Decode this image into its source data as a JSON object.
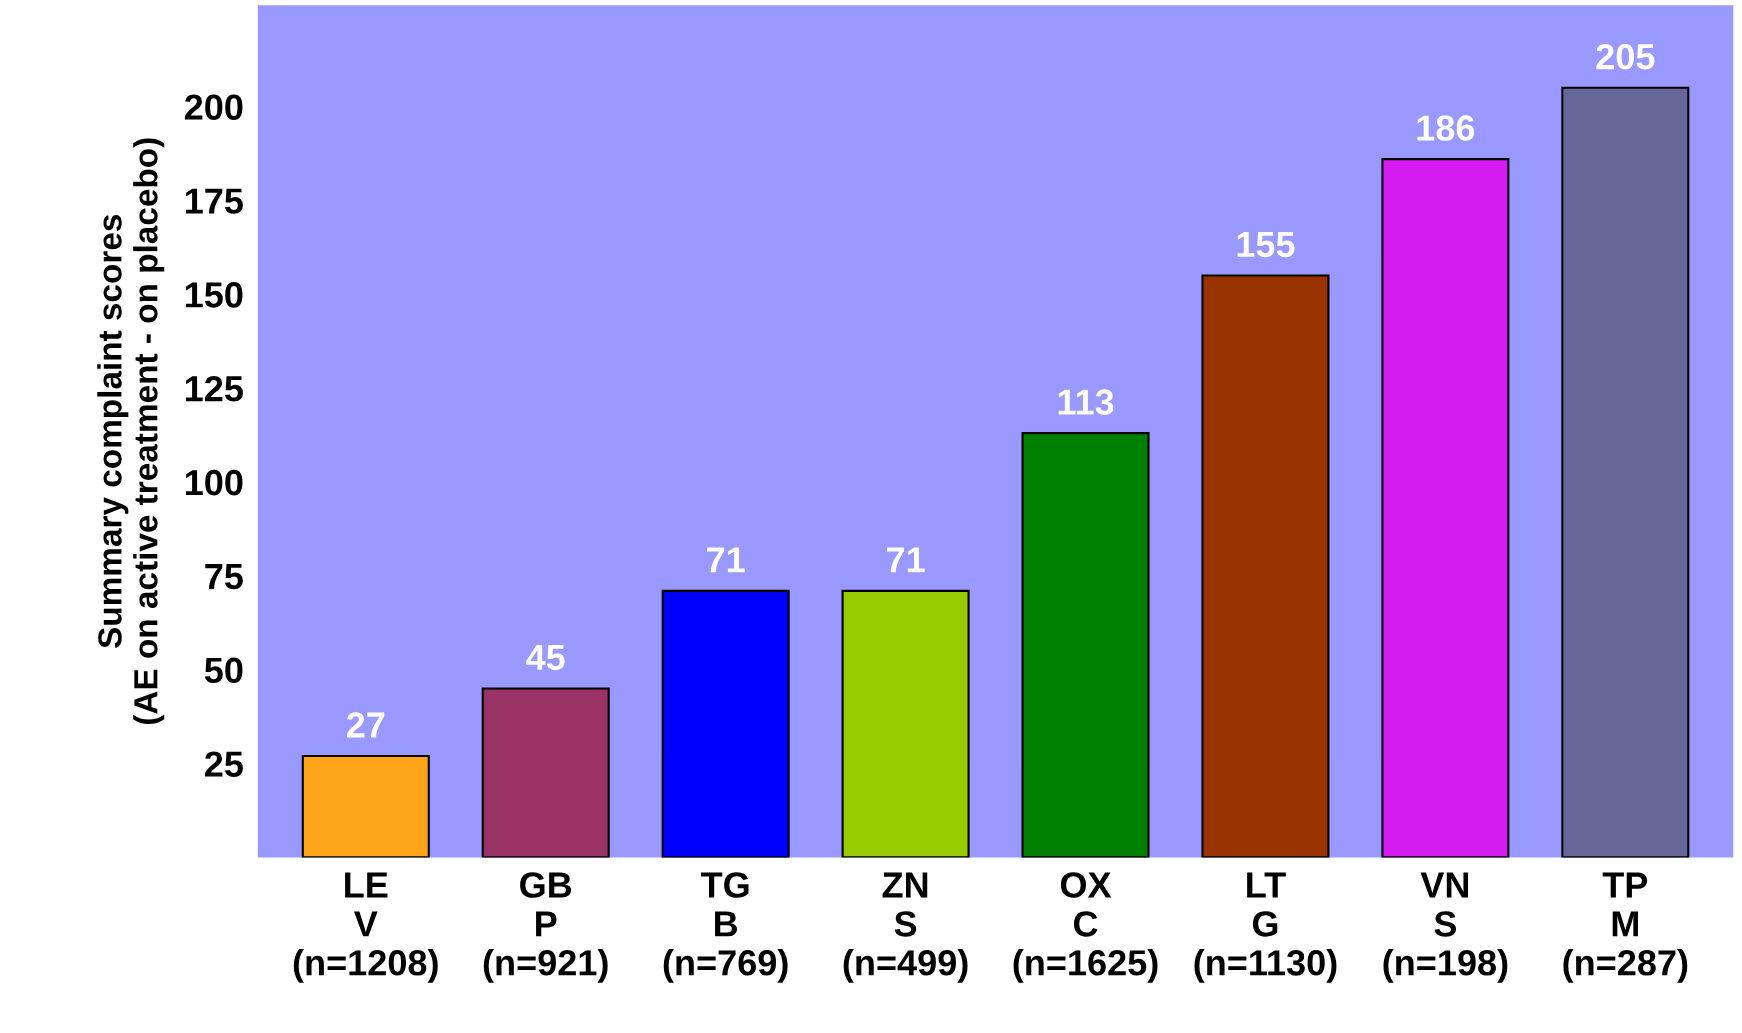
{
  "chart_data": {
    "type": "bar",
    "ylabel": "Summary complaint scores\n(AE on active treatment - on placebo)",
    "categories": [
      "LE\nV\n(n=1208)",
      "GB\nP\n(n=921)",
      "TG\nB\n(n=769)",
      "ZN\nS\n(n=499)",
      "OX\nC\n(n=1625)",
      "LT\nG\n(n=1130)",
      "VN\nS\n(n=198)",
      "TP\nM\n(n=287)"
    ],
    "values": [
      27,
      45,
      71,
      71,
      113,
      155,
      186,
      205
    ],
    "colors": [
      "#ffa51a",
      "#993366",
      "#0000ff",
      "#99cc00",
      "#008000",
      "#993300",
      "#d41cf0",
      "#666699"
    ],
    "ylim": [
      0,
      227
    ],
    "yticks": [
      25,
      50,
      75,
      100,
      125,
      150,
      175,
      200
    ],
    "data_labels": true,
    "grid": false,
    "legend": false
  }
}
